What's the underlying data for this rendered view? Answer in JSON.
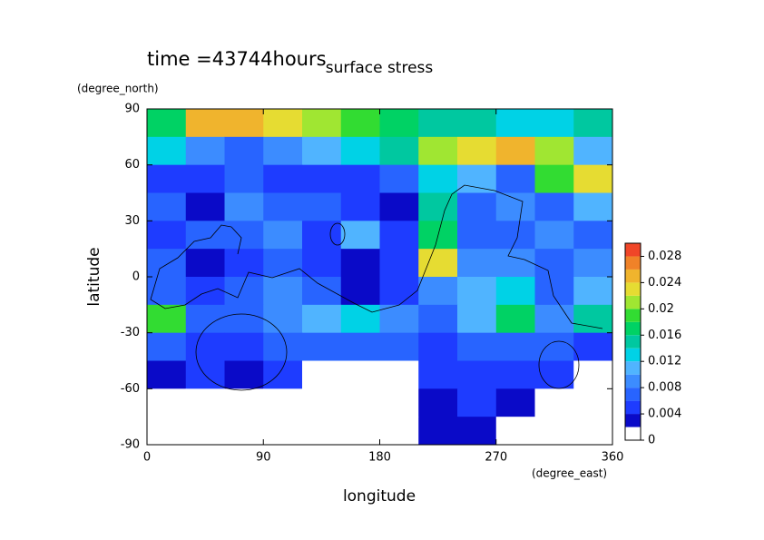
{
  "chart_data": {
    "type": "contour",
    "title": "surface stress",
    "subtitle": "time =43744hours",
    "x_label": "longitude",
    "y_label": "latitude",
    "x_units": "(degree_east)",
    "y_units": "(degree_north)",
    "xlim": [
      0,
      360
    ],
    "ylim": [
      -90,
      90
    ],
    "xticks": [
      0,
      90,
      180,
      270,
      360
    ],
    "yticks": [
      90,
      60,
      30,
      0,
      -30,
      -60,
      -90
    ],
    "x": [
      15,
      45,
      75,
      105,
      135,
      165,
      195,
      225,
      255,
      285,
      315,
      345
    ],
    "y": [
      82.5,
      67.5,
      52.5,
      37.5,
      22.5,
      7.5,
      -7.5,
      -22.5,
      -37.5,
      -52.5,
      -67.5,
      -82.5
    ],
    "z": [
      [
        0.016,
        0.024,
        0.024,
        0.022,
        0.02,
        0.018,
        0.016,
        0.014,
        0.014,
        0.012,
        0.012,
        0.014
      ],
      [
        0.012,
        0.008,
        0.006,
        0.008,
        0.01,
        0.012,
        0.014,
        0.02,
        0.022,
        0.024,
        0.02,
        0.01
      ],
      [
        0.004,
        0.004,
        0.006,
        0.004,
        0.004,
        0.004,
        0.006,
        0.012,
        0.01,
        0.006,
        0.018,
        0.022
      ],
      [
        0.006,
        0.002,
        0.008,
        0.006,
        0.006,
        0.004,
        0.002,
        0.014,
        0.006,
        0.008,
        0.006,
        0.01
      ],
      [
        0.004,
        0.006,
        0.006,
        0.008,
        0.004,
        0.01,
        0.004,
        0.016,
        0.006,
        0.006,
        0.008,
        0.006
      ],
      [
        0.006,
        0.002,
        0.004,
        0.006,
        0.004,
        0.002,
        0.004,
        0.022,
        0.008,
        0.008,
        0.006,
        0.008
      ],
      [
        0.006,
        0.004,
        0.006,
        0.008,
        0.006,
        0.002,
        0.004,
        0.008,
        0.01,
        0.012,
        0.006,
        0.01
      ],
      [
        0.018,
        0.006,
        0.006,
        0.008,
        0.01,
        0.012,
        0.008,
        0.006,
        0.01,
        0.016,
        0.008,
        0.014
      ],
      [
        0.006,
        0.004,
        0.004,
        0.006,
        0.006,
        0.006,
        0.006,
        0.004,
        0.006,
        0.006,
        0.006,
        0.004
      ],
      [
        0.002,
        0.004,
        0.002,
        0.004,
        0,
        0,
        0,
        0.004,
        0.004,
        0.004,
        0.004,
        0
      ],
      [
        0,
        0,
        0,
        0,
        0,
        0,
        0,
        0.002,
        0.004,
        0.002,
        0,
        0
      ],
      [
        0,
        0,
        0,
        0,
        0,
        0,
        0,
        0.002,
        0.002,
        0,
        0,
        0
      ]
    ],
    "levels": [
      0,
      0.002,
      0.004,
      0.006,
      0.008,
      0.01,
      0.012,
      0.014,
      0.016,
      0.018,
      0.02,
      0.022,
      0.024,
      0.026,
      0.028,
      0.03
    ],
    "colors": [
      "#ffffff",
      "#0a0ac8",
      "#1e3cff",
      "#2864ff",
      "#3c8cff",
      "#50b4ff",
      "#00d2e6",
      "#00c8a0",
      "#00d264",
      "#32dc32",
      "#a0e632",
      "#e6dc32",
      "#f0b42d",
      "#f08228",
      "#f04628"
    ],
    "colorbar_lim": [
      0,
      0.03
    ],
    "colorbar_ticks": [
      0,
      0.004,
      0.008,
      0.012,
      0.016,
      0.02,
      0.024,
      0.028
    ]
  }
}
